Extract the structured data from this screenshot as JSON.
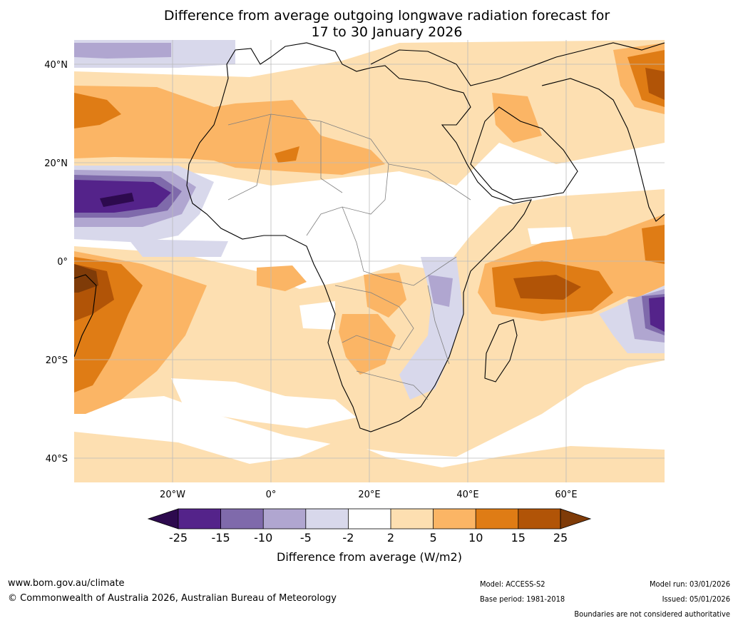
{
  "title": {
    "line1": "Difference from average outgoing longwave radiation forecast for",
    "line2": "17 to 30 January 2026"
  },
  "map": {
    "lat_labels": [
      "40°N",
      "20°N",
      "0°",
      "20°S",
      "40°S"
    ],
    "lon_labels": [
      "20°W",
      "0°",
      "20°E",
      "40°E",
      "60°E"
    ]
  },
  "legend": {
    "colors": [
      "#2d0a4e",
      "#54238a",
      "#7f6aab",
      "#b0a6d0",
      "#d8d8eb",
      "#ffffff",
      "#fddfb1",
      "#fbb565",
      "#df7c15",
      "#b15407",
      "#7f3b08"
    ],
    "ticks": [
      "-25",
      "-15",
      "-10",
      "-5",
      "-2",
      "2",
      "5",
      "10",
      "15",
      "25"
    ],
    "label": "Difference from average (W/m2)"
  },
  "footer": {
    "website": "www.bom.gov.au/climate",
    "copyright": "© Commonwealth of Australia 2026, Australian Bureau of Meteorology",
    "model": "Model: ACCESS-S2",
    "base_period": "Base period: 1981-2018",
    "model_run": "Model run: 03/01/2026",
    "issued": "Issued: 05/01/2026",
    "disclaimer": "Boundaries are not considered authoritative"
  }
}
